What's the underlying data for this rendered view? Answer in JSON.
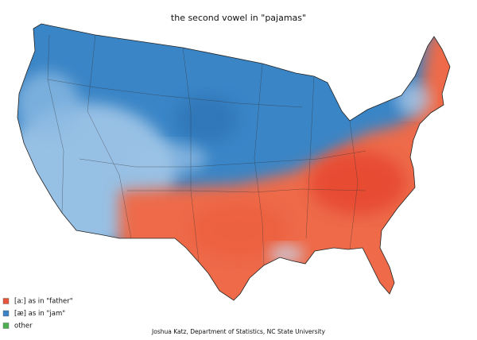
{
  "title": "the second vowel in \"pajamas\"",
  "legend": [
    {
      "label": "[a:] as in \"father\"",
      "color": "#e8543a"
    },
    {
      "label": "[æ] as in \"jam\"",
      "color": "#3b83c4"
    },
    {
      "label": "other",
      "color": "#4caf50"
    }
  ],
  "credit": "Joshua Katz, Department of Statistics, NC State University"
}
